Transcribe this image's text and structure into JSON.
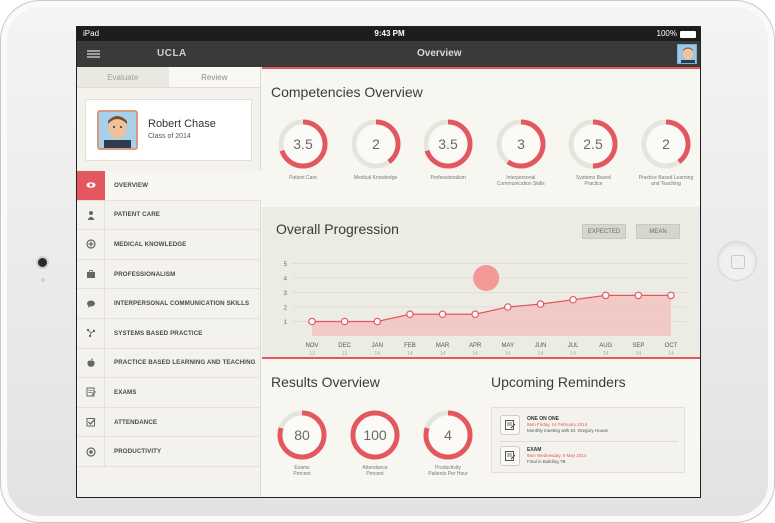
{
  "status_bar": {
    "carrier": "iPad",
    "time": "9:43 PM",
    "battery": "100%"
  },
  "nav_bar": {
    "brand": "UCLA",
    "title": "Overview"
  },
  "sidebar": {
    "tabs": [
      "Evaluate",
      "Review"
    ],
    "profile": {
      "name": "Robert Chase",
      "class": "Class of 2014"
    },
    "items": [
      {
        "label": "OVERVIEW",
        "icon": "eye-icon",
        "active": true
      },
      {
        "label": "PATIENT CARE",
        "icon": "person-icon",
        "active": false
      },
      {
        "label": "MEDICAL KNOWLEDGE",
        "icon": "plus-circle-icon",
        "active": false
      },
      {
        "label": "PROFESSIONALISM",
        "icon": "briefcase-icon",
        "active": false
      },
      {
        "label": "INTERPERSONAL COMMUNICATION SKILLS",
        "icon": "speech-bubble-icon",
        "active": false
      },
      {
        "label": "SYSTEMS BASED PRACTICE",
        "icon": "network-icon",
        "active": false
      },
      {
        "label": "PRACTICE BASED LEARNING AND TEACHING",
        "icon": "apple-icon",
        "active": false
      },
      {
        "label": "EXAMS",
        "icon": "exam-icon",
        "active": false
      },
      {
        "label": "ATTENDANCE",
        "icon": "checkbox-icon",
        "active": false
      },
      {
        "label": "PRODUCTIVITY",
        "icon": "gauge-icon",
        "active": false
      }
    ]
  },
  "competencies": {
    "title": "Competencies Overview",
    "items": [
      {
        "value": "3.5",
        "label": [
          "Patient Care"
        ],
        "fraction": 0.7
      },
      {
        "value": "2",
        "label": [
          "Medical Knowledge"
        ],
        "fraction": 0.4
      },
      {
        "value": "3.5",
        "label": [
          "Professionalism"
        ],
        "fraction": 0.7
      },
      {
        "value": "3",
        "label": [
          "Interpersonal",
          "Communication Skills"
        ],
        "fraction": 0.6
      },
      {
        "value": "2.5",
        "label": [
          "Systems Based",
          "Practice"
        ],
        "fraction": 0.5
      },
      {
        "value": "2",
        "label": [
          "Practice Based Learning",
          "and Teaching"
        ],
        "fraction": 0.4
      }
    ]
  },
  "progression": {
    "title": "Overall Progression",
    "buttons": [
      "EXPECTED",
      "MEAN"
    ]
  },
  "chart_data": {
    "type": "area",
    "categories": [
      "NOV",
      "DEC",
      "JAN",
      "FEB",
      "MAR",
      "APR",
      "MAY",
      "JUN",
      "JUL",
      "AUG",
      "SEP",
      "OCT"
    ],
    "category_years": [
      "13",
      "13",
      "14",
      "14",
      "14",
      "14",
      "14",
      "14",
      "14",
      "14",
      "14",
      "14"
    ],
    "values": [
      1,
      1,
      1,
      1.5,
      1.5,
      1.5,
      2,
      2.2,
      2.5,
      2.8,
      2.8,
      2.8
    ],
    "yticks": [
      1,
      2,
      3,
      4,
      5
    ],
    "ylim": [
      0,
      5
    ],
    "highlight": {
      "category": "APR",
      "value": 4
    },
    "grid": true,
    "colors": {
      "line": "#e3585f",
      "fill": "#f2c4c2",
      "marker_fill": "#ffffff",
      "highlight": "#f29a98"
    }
  },
  "results": {
    "title": "Results Overview",
    "items": [
      {
        "value": "80",
        "label": [
          "Exams",
          "Percent"
        ],
        "fraction": 0.8
      },
      {
        "value": "100",
        "label": [
          "Attendance",
          "Percent"
        ],
        "fraction": 1.0
      },
      {
        "value": "4",
        "label": [
          "Productivity",
          "Patients Per Hour"
        ],
        "fraction": 0.8
      }
    ]
  },
  "reminders": {
    "title": "Upcoming Reminders",
    "items": [
      {
        "title": "ONE ON ONE",
        "date": "9am Friday, 14 February 2014",
        "text": "Monthly meeting with Dr. Gregory House"
      },
      {
        "title": "EXAM",
        "date": "9am Wednesday, 9 May 2014",
        "text": "Final in Building 7B"
      }
    ]
  },
  "colors": {
    "accent": "#e3585f",
    "track": "#e6e5dd"
  }
}
